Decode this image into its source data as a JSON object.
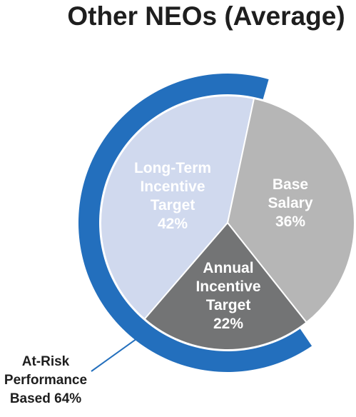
{
  "chart_data": {
    "type": "pie",
    "title": "Other NEOs (Average)",
    "slices": [
      {
        "name": "Long-Term Incentive Target",
        "label_lines": [
          "Long-Term",
          "Incentive",
          "Target",
          "42%"
        ],
        "value": 42,
        "color": "#d0d9ee",
        "label_color": "#ffffff"
      },
      {
        "name": "Base Salary",
        "label_lines": [
          "Base",
          "Salary",
          "36%"
        ],
        "value": 36,
        "color": "#b6b6b6",
        "label_color": "#ffffff"
      },
      {
        "name": "Annual Incentive Target",
        "label_lines": [
          "Annual",
          "Incentive",
          "Target",
          "22%"
        ],
        "value": 22,
        "color": "#737475",
        "label_color": "#ffffff"
      }
    ],
    "arc_annotation": {
      "label_lines": [
        "At-Risk",
        "Performance",
        "Based 64%"
      ],
      "value": 64,
      "color": "#236fbd"
    }
  }
}
